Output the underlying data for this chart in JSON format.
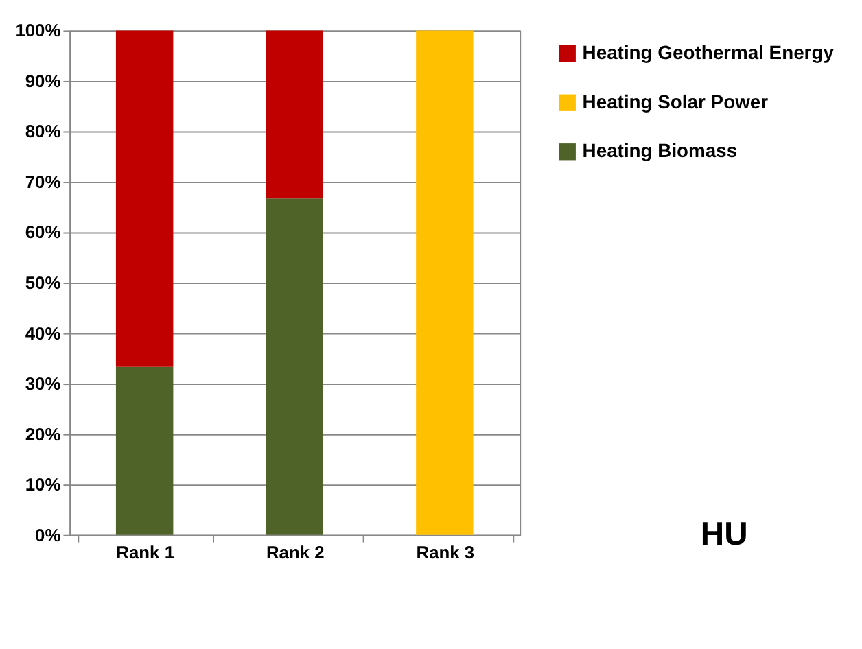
{
  "chart_data": {
    "type": "bar",
    "stacked": true,
    "categories": [
      "Rank 1",
      "Rank 2",
      "Rank 3"
    ],
    "series": [
      {
        "name": "Heating Biomass",
        "color": "#4f6228",
        "values": [
          33.3,
          66.7,
          null
        ]
      },
      {
        "name": "Heating Solar Power",
        "color": "#ffc000",
        "values": [
          null,
          null,
          100
        ]
      },
      {
        "name": "Heating Geothermal Energy",
        "color": "#c00000",
        "values": [
          66.7,
          33.3,
          null
        ]
      }
    ],
    "ylim": [
      0,
      100
    ],
    "yticks": [
      {
        "value": 0,
        "label": "0%"
      },
      {
        "value": 10,
        "label": "10%"
      },
      {
        "value": 20,
        "label": "20%"
      },
      {
        "value": 30,
        "label": "30%"
      },
      {
        "value": 40,
        "label": "40%"
      },
      {
        "value": 50,
        "label": "50%"
      },
      {
        "value": 60,
        "label": "60%"
      },
      {
        "value": 70,
        "label": "70%"
      },
      {
        "value": 80,
        "label": "80%"
      },
      {
        "value": 90,
        "label": "90%"
      },
      {
        "value": 100,
        "label": "100%"
      }
    ],
    "grid": "y",
    "legend": "right",
    "annotations": [
      "HU"
    ]
  }
}
